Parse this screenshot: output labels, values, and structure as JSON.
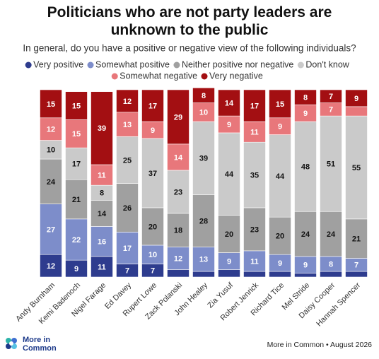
{
  "chart_data": {
    "type": "stacked_bar",
    "title": "Politicians who are not party leaders are unknown to the public",
    "subtitle": "In general, do you have a positive or negative view of the following individuals?",
    "categories": [
      "Andy Burnham",
      "Kemi Badenoch",
      "Nigel Farage",
      "Ed Davey",
      "Rupert Lowe",
      "Zack Polanski",
      "John Healey",
      "Zia Yusuf",
      "Robert Jenrick",
      "Richard Tice",
      "Mel Stride",
      "Daisy Cooper",
      "Hannah Spencer"
    ],
    "series": [
      {
        "name": "Very positive",
        "color": "#2e3c8e",
        "values": [
          12,
          9,
          11,
          7,
          7,
          4,
          3,
          4,
          3,
          3,
          2,
          3,
          3
        ]
      },
      {
        "name": "Somewhat positive",
        "color": "#7d8dca",
        "values": [
          27,
          22,
          16,
          17,
          10,
          12,
          13,
          9,
          11,
          9,
          9,
          8,
          7
        ]
      },
      {
        "name": "Neither positive nor negative",
        "color": "#a0a0a0",
        "values": [
          24,
          21,
          14,
          26,
          20,
          18,
          28,
          20,
          23,
          20,
          24,
          24,
          21
        ]
      },
      {
        "name": "Don't know",
        "color": "#cacaca",
        "values": [
          10,
          17,
          8,
          25,
          37,
          23,
          39,
          44,
          35,
          44,
          48,
          51,
          55
        ]
      },
      {
        "name": "Somewhat negative",
        "color": "#e8777b",
        "values": [
          12,
          15,
          11,
          13,
          9,
          14,
          10,
          9,
          11,
          9,
          9,
          7,
          5
        ]
      },
      {
        "name": "Very negative",
        "color": "#a30f12",
        "values": [
          15,
          15,
          39,
          12,
          17,
          29,
          8,
          14,
          17,
          15,
          8,
          7,
          9
        ]
      }
    ],
    "ylim": [
      0,
      100
    ],
    "source": "More in Common • August 2026",
    "logo": "More in Common"
  }
}
